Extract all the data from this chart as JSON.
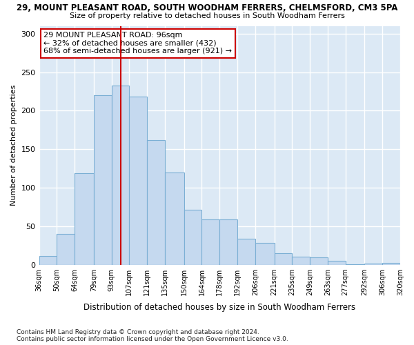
{
  "title": "29, MOUNT PLEASANT ROAD, SOUTH WOODHAM FERRERS, CHELMSFORD, CM3 5PA",
  "subtitle": "Size of property relative to detached houses in South Woodham Ferrers",
  "xlabel": "Distribution of detached houses by size in South Woodham Ferrers",
  "ylabel": "Number of detached properties",
  "bar_color": "#c5d9ef",
  "bar_edge_color": "#7bafd4",
  "bg_color": "#dce9f5",
  "vline_x": 100,
  "vline_color": "#cc0000",
  "annotation_text": "29 MOUNT PLEASANT ROAD: 96sqm\n← 32% of detached houses are smaller (432)\n68% of semi-detached houses are larger (921) →",
  "bins": [
    36,
    50,
    64,
    79,
    93,
    107,
    121,
    135,
    150,
    164,
    178,
    192,
    206,
    221,
    235,
    249,
    263,
    277,
    292,
    306,
    320
  ],
  "bin_labels": [
    "36sqm",
    "50sqm",
    "64sqm",
    "79sqm",
    "93sqm",
    "107sqm",
    "121sqm",
    "135sqm",
    "150sqm",
    "164sqm",
    "178sqm",
    "192sqm",
    "206sqm",
    "221sqm",
    "235sqm",
    "249sqm",
    "263sqm",
    "277sqm",
    "292sqm",
    "306sqm",
    "320sqm"
  ],
  "bar_heights": [
    12,
    40,
    119,
    220,
    233,
    218,
    162,
    120,
    72,
    59,
    59,
    34,
    29,
    15,
    11,
    10,
    5,
    1,
    2,
    3
  ],
  "ylim": [
    0,
    310
  ],
  "yticks": [
    0,
    50,
    100,
    150,
    200,
    250,
    300
  ],
  "footnote1": "Contains HM Land Registry data © Crown copyright and database right 2024.",
  "footnote2": "Contains public sector information licensed under the Open Government Licence v3.0."
}
